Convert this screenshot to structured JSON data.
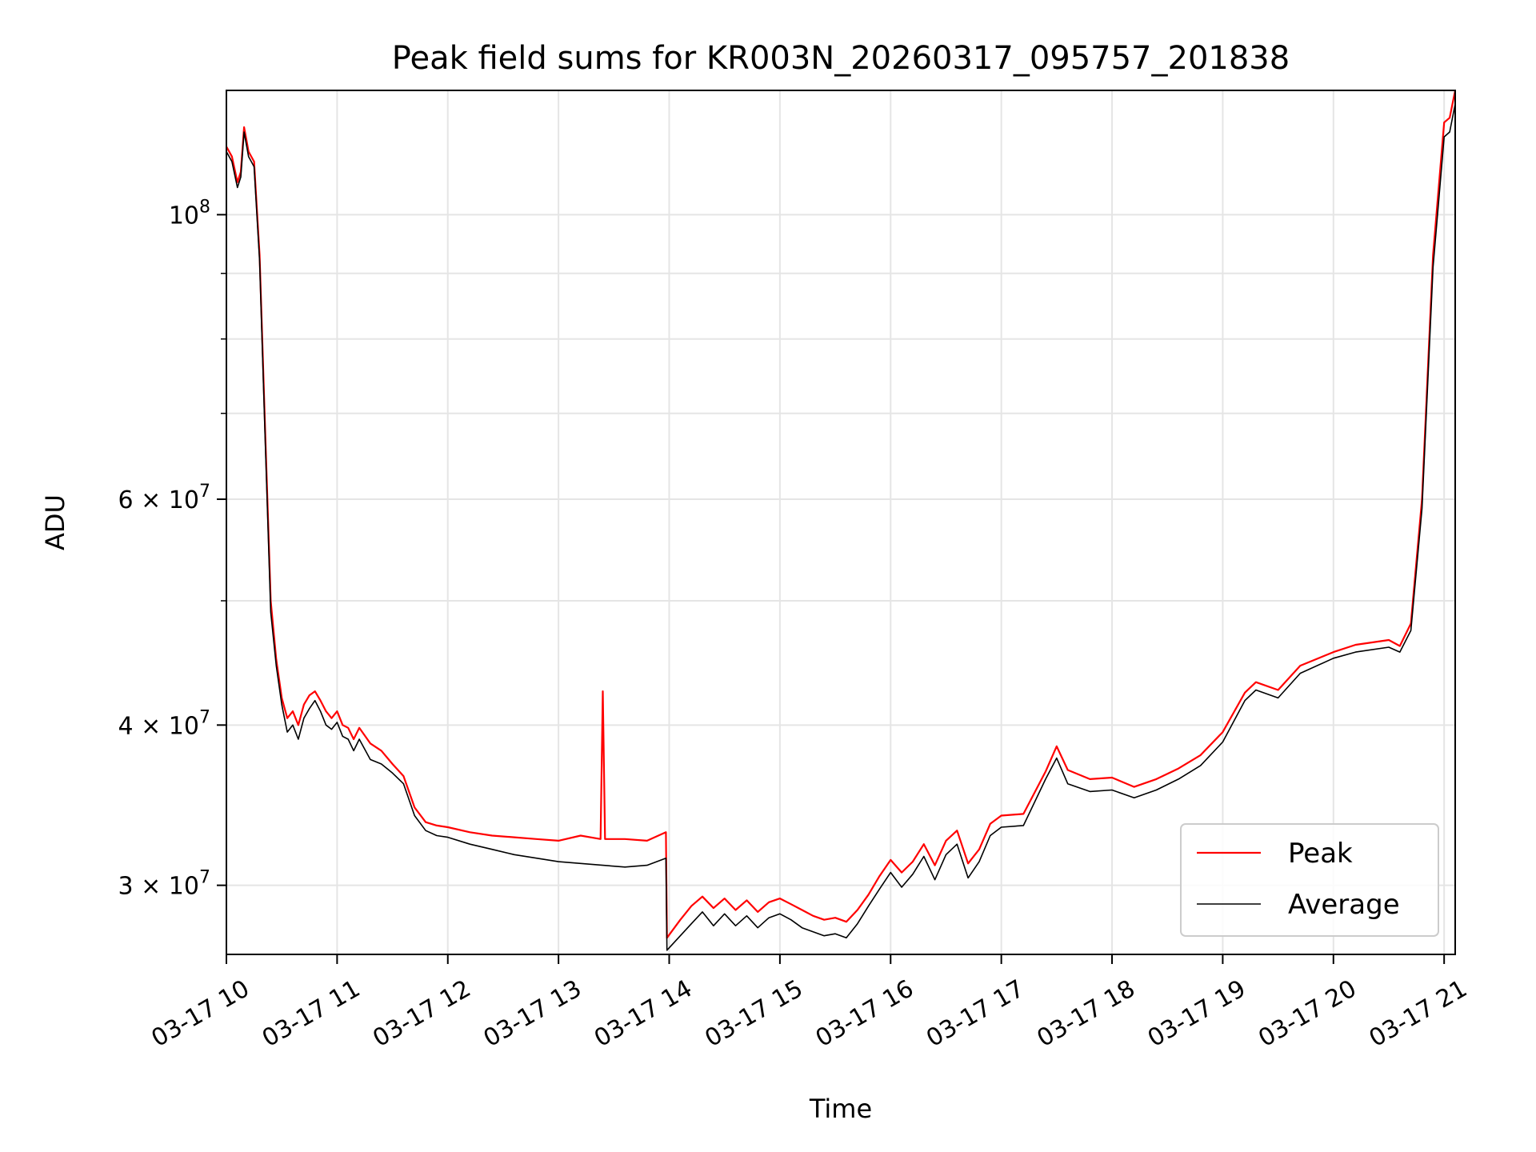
{
  "chart_data": {
    "type": "line",
    "title": "Peak field sums for KR003N_20260317_095757_201838",
    "xlabel": "Time",
    "ylabel": "ADU",
    "yscale": "log",
    "xlim": [
      10.0,
      21.1
    ],
    "ylim": [
      26500000,
      125000000
    ],
    "grid": true,
    "x_ticks": [
      {
        "value": 10,
        "label": "03-17 10"
      },
      {
        "value": 11,
        "label": "03-17 11"
      },
      {
        "value": 12,
        "label": "03-17 12"
      },
      {
        "value": 13,
        "label": "03-17 13"
      },
      {
        "value": 14,
        "label": "03-17 14"
      },
      {
        "value": 15,
        "label": "03-17 15"
      },
      {
        "value": 16,
        "label": "03-17 16"
      },
      {
        "value": 17,
        "label": "03-17 17"
      },
      {
        "value": 18,
        "label": "03-17 18"
      },
      {
        "value": 19,
        "label": "03-17 19"
      },
      {
        "value": 20,
        "label": "03-17 20"
      },
      {
        "value": 21,
        "label": "03-17 21"
      }
    ],
    "y_major_ticks": [
      {
        "value": 30000000,
        "base": "3 × 10",
        "exp": "7"
      },
      {
        "value": 40000000,
        "base": "4 × 10",
        "exp": "7"
      },
      {
        "value": 60000000,
        "base": "6 × 10",
        "exp": "7"
      },
      {
        "value": 100000000,
        "base": "10",
        "exp": "8"
      }
    ],
    "y_minor_ticks": [
      50000000,
      70000000,
      80000000,
      90000000
    ],
    "legend_position": "lower-right",
    "series": [
      {
        "name": "Peak",
        "color": "#ff0000",
        "x": [
          10.0,
          10.05,
          10.1,
          10.13,
          10.16,
          10.2,
          10.25,
          10.3,
          10.35,
          10.4,
          10.45,
          10.5,
          10.55,
          10.6,
          10.65,
          10.7,
          10.75,
          10.8,
          10.85,
          10.9,
          10.95,
          11.0,
          11.05,
          11.1,
          11.15,
          11.2,
          11.3,
          11.4,
          11.5,
          11.6,
          11.7,
          11.8,
          11.9,
          12.0,
          12.2,
          12.4,
          12.6,
          12.8,
          13.0,
          13.2,
          13.38,
          13.4,
          13.42,
          13.6,
          13.8,
          13.97,
          13.98,
          14.1,
          14.2,
          14.3,
          14.4,
          14.5,
          14.6,
          14.7,
          14.8,
          14.9,
          15.0,
          15.1,
          15.2,
          15.3,
          15.4,
          15.5,
          15.6,
          15.7,
          15.8,
          15.9,
          16.0,
          16.1,
          16.2,
          16.3,
          16.4,
          16.5,
          16.6,
          16.7,
          16.8,
          16.9,
          17.0,
          17.2,
          17.4,
          17.5,
          17.6,
          17.8,
          18.0,
          18.2,
          18.4,
          18.6,
          18.8,
          19.0,
          19.2,
          19.3,
          19.5,
          19.7,
          20.0,
          20.2,
          20.5,
          20.6,
          20.7,
          20.8,
          20.9,
          21.0,
          21.05,
          21.1
        ],
        "values": [
          113000000,
          111000000,
          106000000,
          108000000,
          117000000,
          112000000,
          110000000,
          93000000,
          68000000,
          50000000,
          45000000,
          42000000,
          40500000,
          41000000,
          40000000,
          41500000,
          42200000,
          42500000,
          41800000,
          41000000,
          40500000,
          41000000,
          40000000,
          39800000,
          39000000,
          39800000,
          38700000,
          38200000,
          37300000,
          36500000,
          34500000,
          33600000,
          33400000,
          33300000,
          33000000,
          32800000,
          32700000,
          32600000,
          32500000,
          32800000,
          32600000,
          42500000,
          32600000,
          32600000,
          32500000,
          33000000,
          27300000,
          28200000,
          28900000,
          29400000,
          28800000,
          29300000,
          28700000,
          29200000,
          28600000,
          29100000,
          29300000,
          29000000,
          28700000,
          28400000,
          28200000,
          28300000,
          28100000,
          28700000,
          29500000,
          30500000,
          31400000,
          30700000,
          31300000,
          32300000,
          31100000,
          32500000,
          33100000,
          31200000,
          32000000,
          33500000,
          34000000,
          34100000,
          36800000,
          38500000,
          36900000,
          36300000,
          36400000,
          35800000,
          36300000,
          37000000,
          37900000,
          39500000,
          42400000,
          43200000,
          42600000,
          44500000,
          45600000,
          46200000,
          46600000,
          46100000,
          48000000,
          60000000,
          93000000,
          118000000,
          119000000,
          125000000
        ]
      },
      {
        "name": "Average",
        "color": "#000000",
        "x": [
          10.0,
          10.05,
          10.1,
          10.13,
          10.16,
          10.2,
          10.25,
          10.3,
          10.35,
          10.4,
          10.45,
          10.5,
          10.55,
          10.6,
          10.65,
          10.7,
          10.75,
          10.8,
          10.85,
          10.9,
          10.95,
          11.0,
          11.05,
          11.1,
          11.15,
          11.2,
          11.3,
          11.4,
          11.5,
          11.6,
          11.7,
          11.8,
          11.9,
          12.0,
          12.2,
          12.4,
          12.6,
          12.8,
          13.0,
          13.2,
          13.4,
          13.6,
          13.8,
          13.97,
          13.98,
          14.1,
          14.2,
          14.3,
          14.4,
          14.5,
          14.6,
          14.7,
          14.8,
          14.9,
          15.0,
          15.1,
          15.2,
          15.3,
          15.4,
          15.5,
          15.6,
          15.7,
          15.8,
          15.9,
          16.0,
          16.1,
          16.2,
          16.3,
          16.4,
          16.5,
          16.6,
          16.7,
          16.8,
          16.9,
          17.0,
          17.2,
          17.4,
          17.5,
          17.6,
          17.8,
          18.0,
          18.2,
          18.4,
          18.6,
          18.8,
          19.0,
          19.2,
          19.3,
          19.5,
          19.7,
          20.0,
          20.2,
          20.5,
          20.6,
          20.7,
          20.8,
          20.9,
          21.0,
          21.05,
          21.1
        ],
        "values": [
          112000000,
          110000000,
          105000000,
          107000000,
          116000000,
          111000000,
          109000000,
          92000000,
          67000000,
          49000000,
          44500000,
          41500000,
          39500000,
          40000000,
          39000000,
          40500000,
          41200000,
          41800000,
          41000000,
          40000000,
          39700000,
          40200000,
          39200000,
          39000000,
          38200000,
          39000000,
          37600000,
          37300000,
          36700000,
          36000000,
          34000000,
          33100000,
          32800000,
          32700000,
          32300000,
          32000000,
          31700000,
          31500000,
          31300000,
          31200000,
          31100000,
          31000000,
          31100000,
          31500000,
          26700000,
          27400000,
          28000000,
          28600000,
          27900000,
          28500000,
          27900000,
          28400000,
          27800000,
          28300000,
          28500000,
          28200000,
          27800000,
          27600000,
          27400000,
          27500000,
          27300000,
          28000000,
          28900000,
          29800000,
          30700000,
          29900000,
          30600000,
          31600000,
          30300000,
          31700000,
          32300000,
          30400000,
          31300000,
          32800000,
          33300000,
          33400000,
          36300000,
          37700000,
          36000000,
          35500000,
          35600000,
          35100000,
          35600000,
          36300000,
          37200000,
          38800000,
          41800000,
          42600000,
          42000000,
          43900000,
          45100000,
          45600000,
          46000000,
          45600000,
          47400000,
          59000000,
          91000000,
          115000000,
          116000000,
          122000000
        ]
      }
    ]
  }
}
